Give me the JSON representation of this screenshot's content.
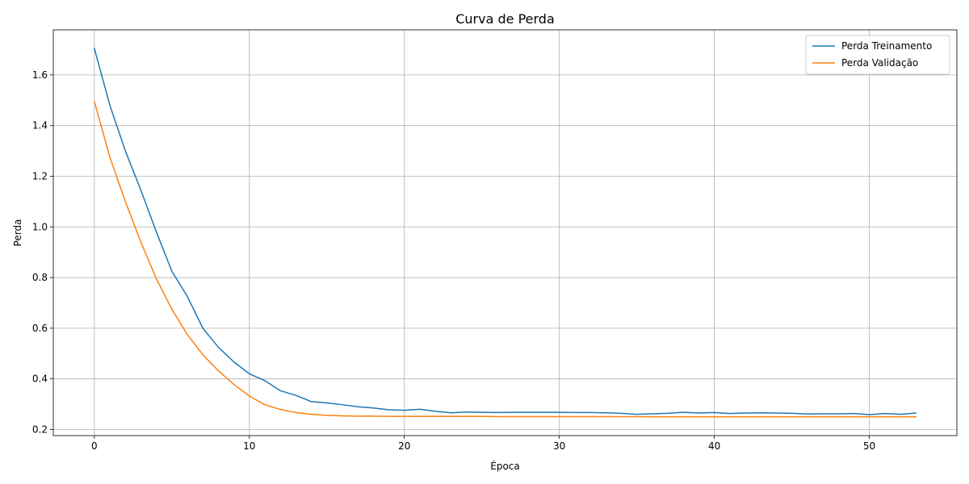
{
  "chart_data": {
    "type": "line",
    "title": "Curva de Perda",
    "xlabel": "Época",
    "ylabel": "Perda",
    "xlim": [
      -2.65,
      55.65
    ],
    "ylim": [
      0.176,
      1.778
    ],
    "xticks": [
      0,
      10,
      20,
      30,
      40,
      50
    ],
    "yticks": [
      0.2,
      0.4,
      0.6,
      0.8,
      1.0,
      1.2,
      1.4,
      1.6
    ],
    "ytick_labels": [
      "0.2",
      "0.4",
      "0.6",
      "0.8",
      "1.0",
      "1.2",
      "1.4",
      "1.6"
    ],
    "grid": true,
    "legend_position": "top-right",
    "series": [
      {
        "name": "Perda Treinamento",
        "color": "#1f77b4",
        "x": [
          0,
          1,
          2,
          3,
          4,
          5,
          6,
          7,
          8,
          9,
          10,
          11,
          12,
          13,
          14,
          15,
          16,
          17,
          18,
          19,
          20,
          21,
          22,
          23,
          24,
          25,
          26,
          27,
          28,
          29,
          30,
          31,
          32,
          33,
          34,
          35,
          36,
          37,
          38,
          39,
          40,
          41,
          42,
          43,
          44,
          45,
          46,
          47,
          48,
          49,
          50,
          51,
          52,
          53
        ],
        "values": [
          1.705,
          1.48,
          1.3,
          1.145,
          0.98,
          0.825,
          0.725,
          0.6,
          0.525,
          0.467,
          0.42,
          0.393,
          0.353,
          0.335,
          0.31,
          0.305,
          0.298,
          0.29,
          0.285,
          0.278,
          0.276,
          0.28,
          0.272,
          0.266,
          0.269,
          0.268,
          0.267,
          0.268,
          0.268,
          0.268,
          0.268,
          0.267,
          0.267,
          0.266,
          0.264,
          0.26,
          0.262,
          0.264,
          0.268,
          0.265,
          0.267,
          0.263,
          0.265,
          0.266,
          0.265,
          0.264,
          0.261,
          0.262,
          0.262,
          0.263,
          0.259,
          0.263,
          0.26,
          0.265
        ]
      },
      {
        "name": "Perda Validação",
        "color": "#ff7f0e",
        "x": [
          0,
          1,
          2,
          3,
          4,
          5,
          6,
          7,
          8,
          9,
          10,
          11,
          12,
          13,
          14,
          15,
          16,
          17,
          18,
          19,
          20,
          21,
          22,
          23,
          24,
          25,
          26,
          27,
          28,
          29,
          30,
          31,
          32,
          33,
          34,
          35,
          36,
          37,
          38,
          39,
          40,
          41,
          42,
          43,
          44,
          45,
          46,
          47,
          48,
          49,
          50,
          51,
          52,
          53
        ],
        "values": [
          1.495,
          1.275,
          1.1,
          0.94,
          0.795,
          0.675,
          0.575,
          0.495,
          0.432,
          0.378,
          0.332,
          0.298,
          0.279,
          0.267,
          0.26,
          0.256,
          0.254,
          0.253,
          0.253,
          0.252,
          0.252,
          0.252,
          0.252,
          0.252,
          0.252,
          0.252,
          0.251,
          0.251,
          0.251,
          0.251,
          0.251,
          0.251,
          0.251,
          0.251,
          0.251,
          0.251,
          0.25,
          0.25,
          0.25,
          0.25,
          0.25,
          0.25,
          0.25,
          0.25,
          0.25,
          0.25,
          0.25,
          0.25,
          0.25,
          0.25,
          0.25,
          0.25,
          0.25,
          0.25
        ]
      }
    ]
  }
}
